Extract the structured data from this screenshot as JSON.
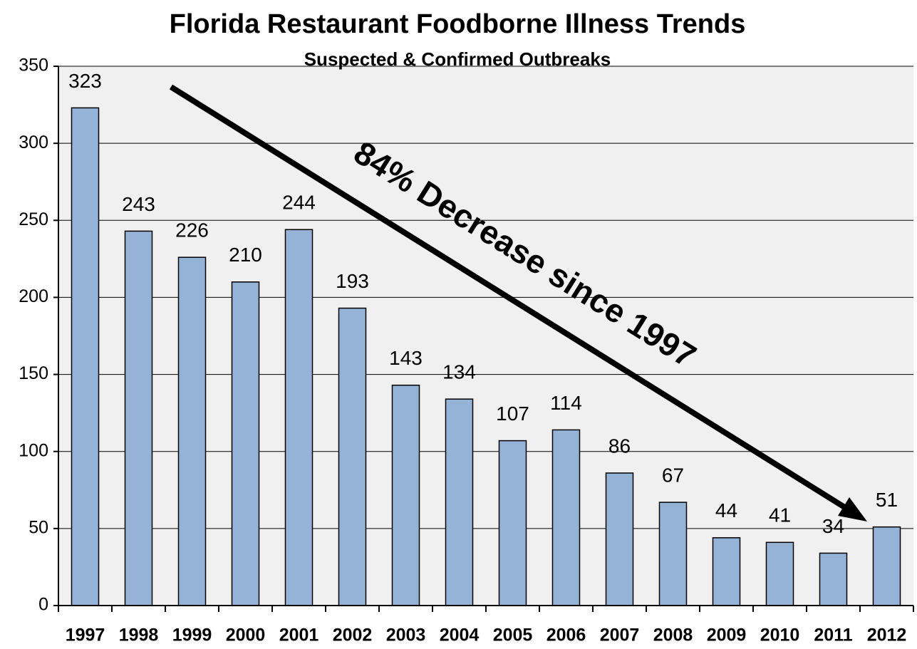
{
  "chart_data": {
    "type": "bar",
    "title": "Florida Restaurant Foodborne Illness Trends",
    "subtitle": "Suspected & Confirmed Outbreaks",
    "annotation": "84% Decrease since 1997",
    "categories": [
      "1997",
      "1998",
      "1999",
      "2000",
      "2001",
      "2002",
      "2003",
      "2004",
      "2005",
      "2006",
      "2007",
      "2008",
      "2009",
      "2010",
      "2011",
      "2012"
    ],
    "values": [
      323,
      243,
      226,
      210,
      244,
      193,
      143,
      134,
      107,
      114,
      86,
      67,
      44,
      41,
      34,
      51
    ],
    "color": "#95b3d7",
    "ylim": [
      0,
      350
    ],
    "yticks": [
      0,
      50,
      100,
      150,
      200,
      250,
      300,
      350
    ],
    "grid": true
  }
}
